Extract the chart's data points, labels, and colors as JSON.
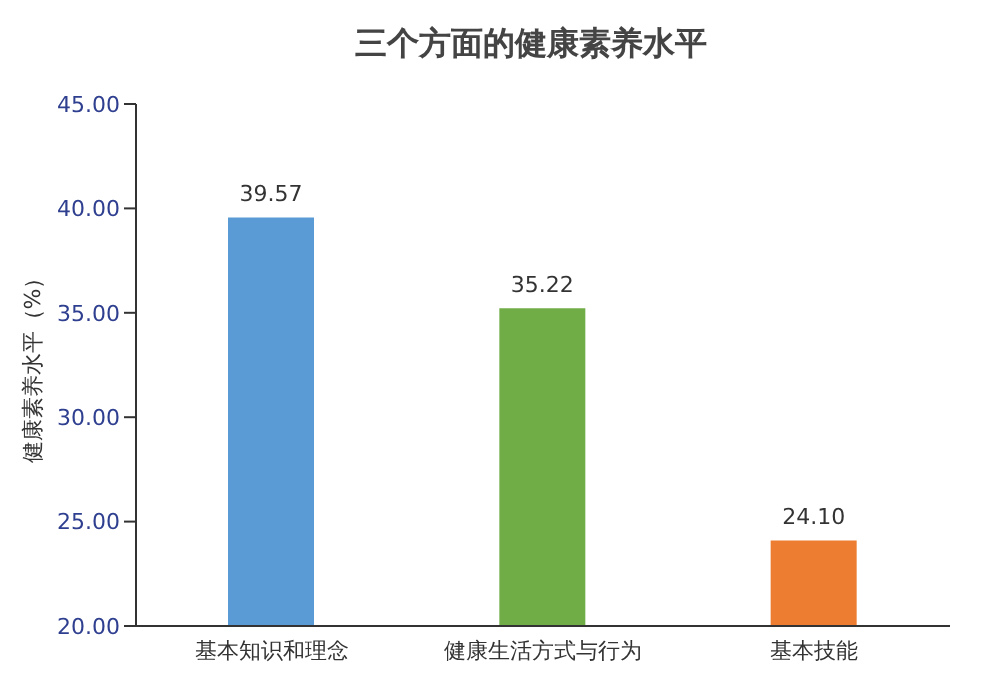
{
  "chart_data": {
    "type": "bar",
    "title": "三个方面的健康素养水平",
    "ylabel": "健康素养水平（%）",
    "categories": [
      "基本知识和理念",
      "健康生活方式与行为",
      "基本技能"
    ],
    "values": [
      39.57,
      35.22,
      24.1
    ],
    "colors": [
      "#5b9bd5",
      "#70ad47",
      "#ed7d31"
    ],
    "value_labels": [
      "39.57",
      "35.22",
      "24.10"
    ],
    "ylim": [
      20,
      45
    ],
    "yticks": [
      {
        "value": 20,
        "label": "20.00"
      },
      {
        "value": 25,
        "label": "25.00"
      },
      {
        "value": 30,
        "label": "30.00"
      },
      {
        "value": 35,
        "label": "35.00"
      },
      {
        "value": 40,
        "label": "40.00"
      },
      {
        "value": 45,
        "label": "45.00"
      }
    ]
  }
}
